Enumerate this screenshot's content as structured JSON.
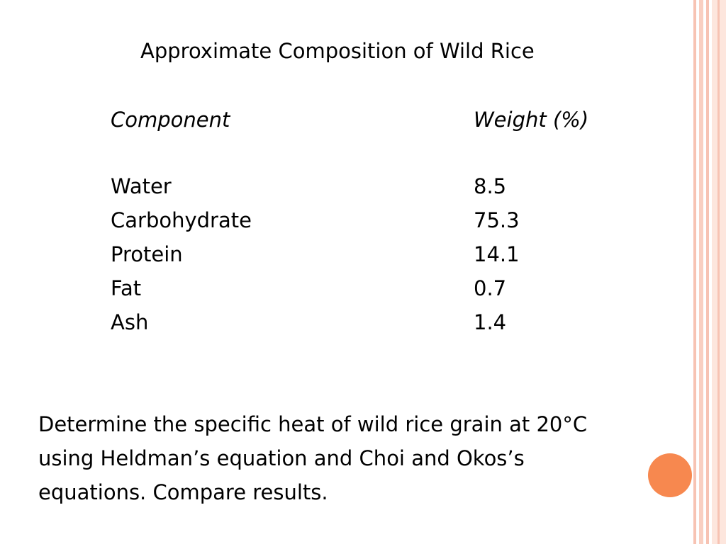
{
  "title": "Approximate Composition of Wild Rice",
  "table": {
    "header": [
      "Component",
      "Weight (%)"
    ],
    "rows": [
      [
        "Water",
        "8.5"
      ],
      [
        "Carbohydrate",
        "75.3"
      ],
      [
        "Protein",
        "14.1"
      ],
      [
        "Fat",
        "0.7"
      ],
      [
        "Ash",
        "1.4"
      ]
    ]
  },
  "body": [
    "Determine the specific heat of wild rice grain at 20°C",
    "using Heldman’s equation and Choi and Okos’s",
    "equations. Compare results."
  ]
}
